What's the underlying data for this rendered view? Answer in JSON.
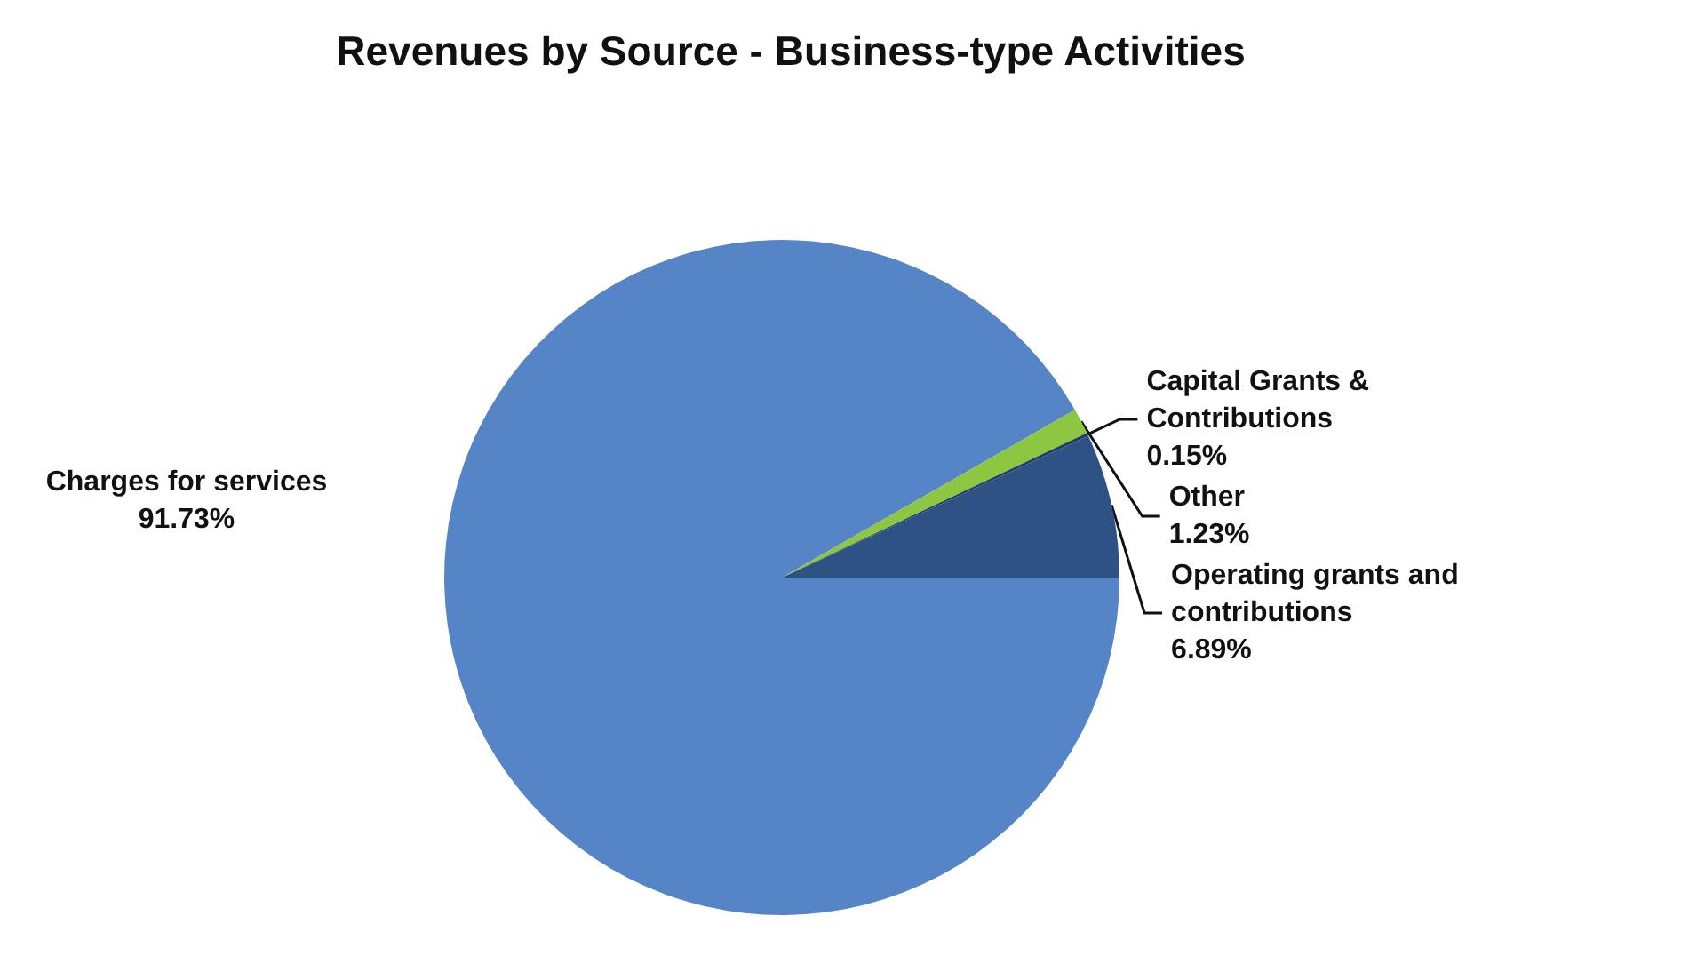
{
  "chart_data": {
    "type": "pie",
    "title": "Revenues by Source - Business-type Activities",
    "categories": [
      "Charges for services",
      "Other",
      "Capital Grants & Contributions",
      "Operating grants and contributions"
    ],
    "values": [
      91.73,
      1.23,
      0.15,
      6.89
    ],
    "value_labels": [
      "91.73%",
      "1.23%",
      "0.15%",
      "6.89%"
    ],
    "colors": [
      "#5585c6",
      "#8dc641",
      "#1f3d66",
      "#2e5283"
    ],
    "legend": false
  }
}
